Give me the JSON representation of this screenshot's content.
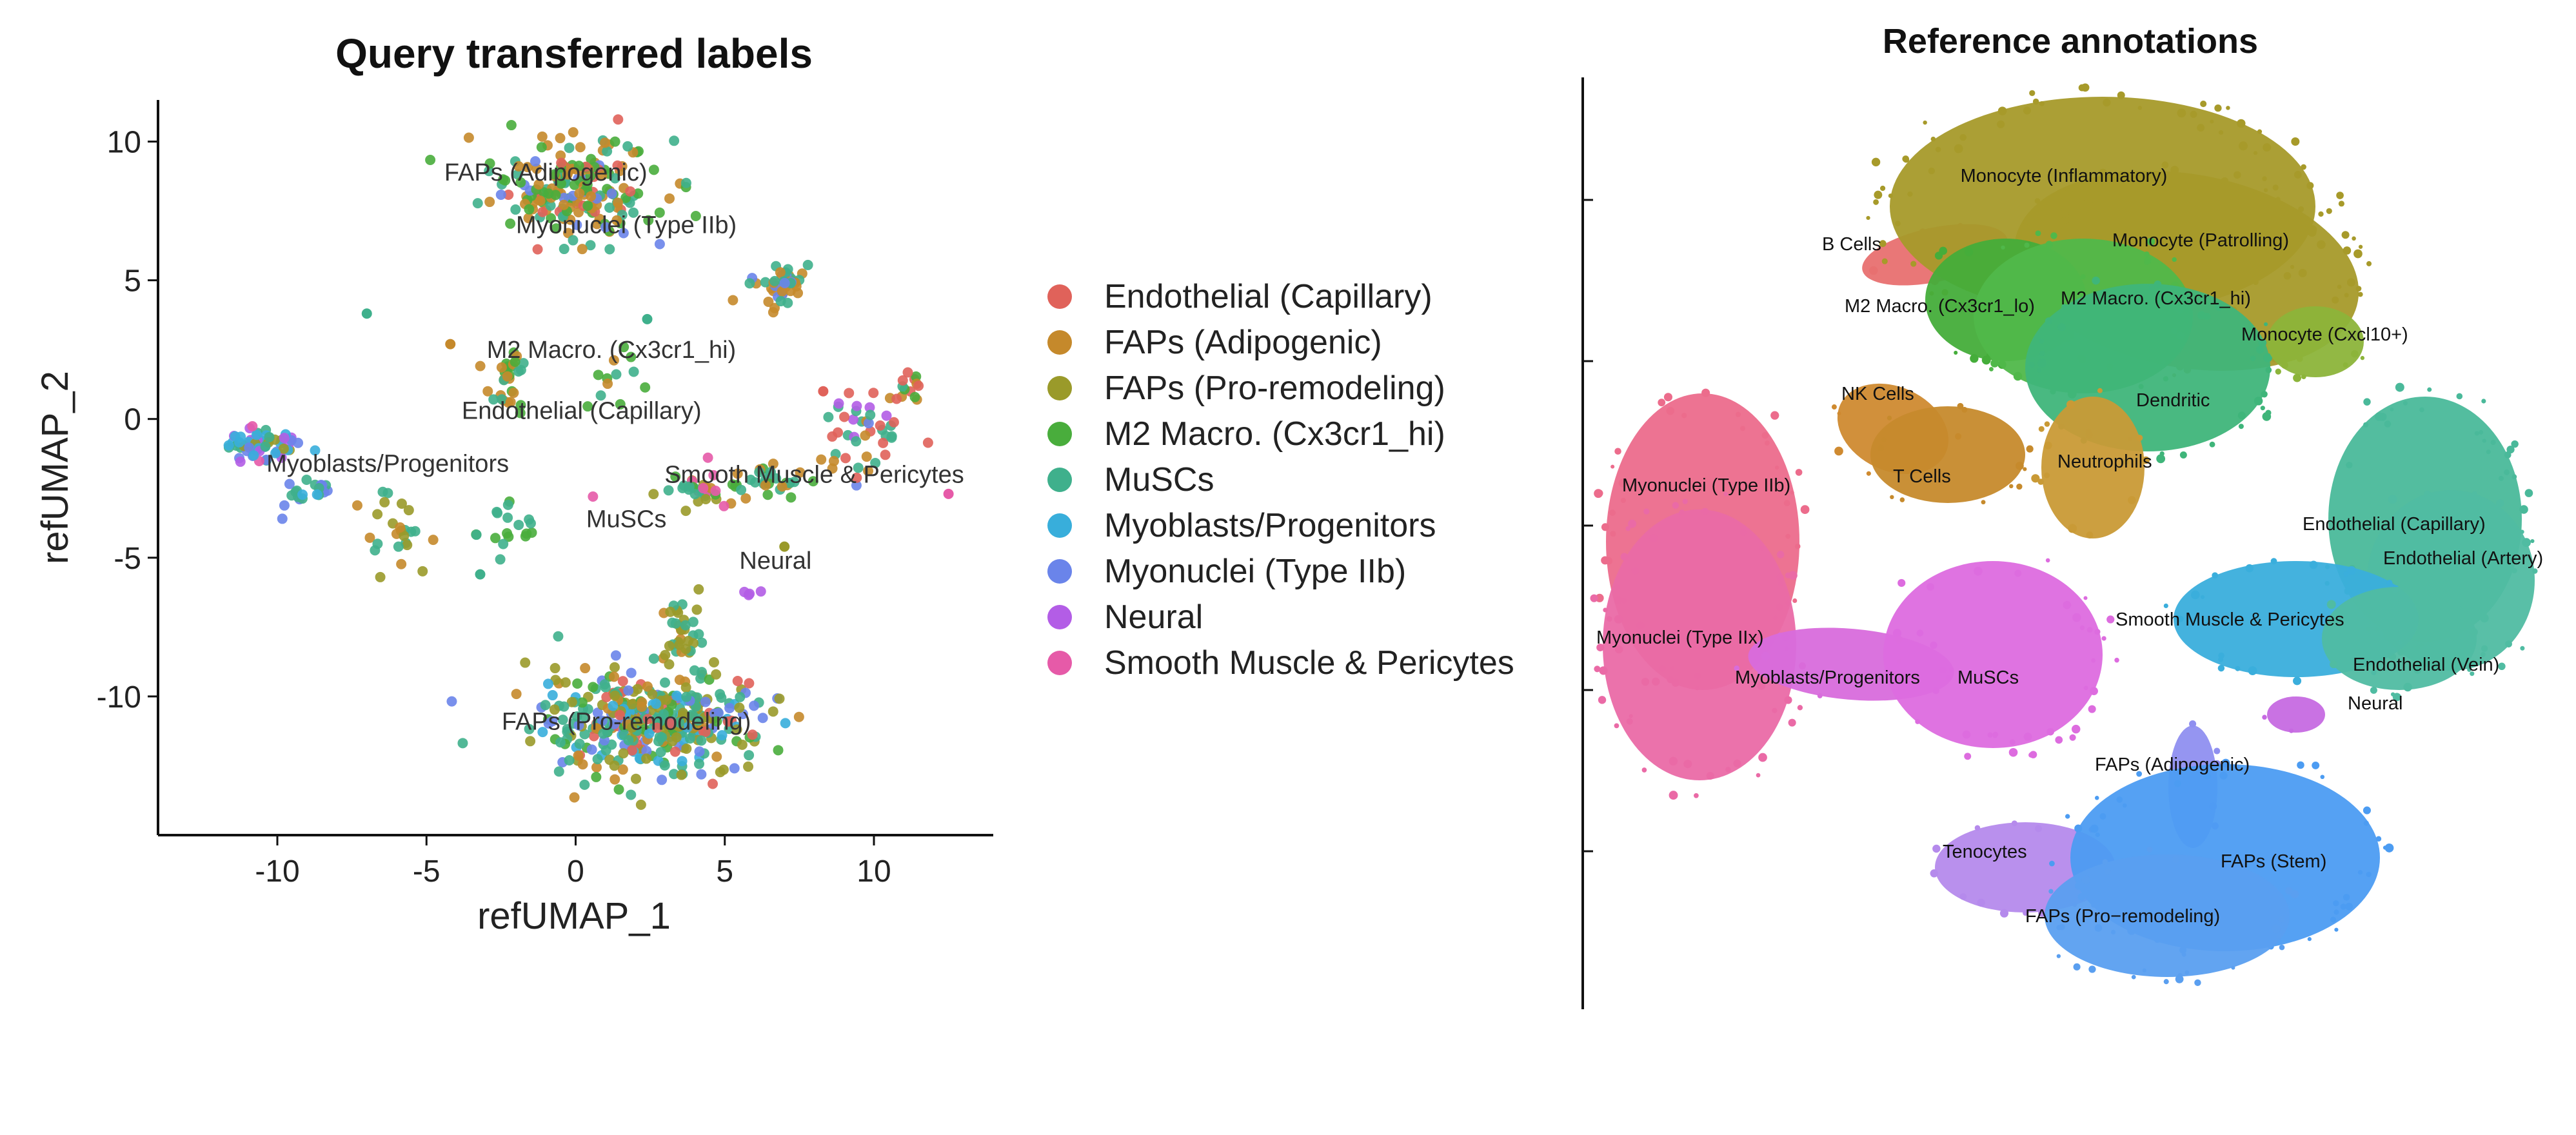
{
  "left_panel": {
    "title": "Query transferred labels",
    "xlabel": "refUMAP_1",
    "ylabel": "refUMAP_2",
    "legend": [
      {
        "label": "Endothelial (Capillary)",
        "color": "#e0625a"
      },
      {
        "label": "FAPs (Adipogenic)",
        "color": "#c5892b"
      },
      {
        "label": "FAPs (Pro-remodeling)",
        "color": "#9a9a2a"
      },
      {
        "label": "M2 Macro. (Cx3cr1_hi)",
        "color": "#49ad3c"
      },
      {
        "label": "MuSCs",
        "color": "#3fb08c"
      },
      {
        "label": "Myoblasts/Progenitors",
        "color": "#38aedb"
      },
      {
        "label": "Myonuclei (Type IIb)",
        "color": "#6a84ea"
      },
      {
        "label": "Neural",
        "color": "#b35de6"
      },
      {
        "label": "Smooth Muscle & Pericytes",
        "color": "#e65aa8"
      }
    ]
  },
  "right_panel": {
    "title": "Reference annotations"
  },
  "chart_data": [
    {
      "type": "scatter",
      "title": "Query transferred labels",
      "xlabel": "refUMAP_1",
      "ylabel": "refUMAP_2",
      "xlim": [
        -14,
        14
      ],
      "ylim": [
        -15,
        11.5
      ],
      "xticks": [
        -10,
        -5,
        0,
        5,
        10
      ],
      "yticks": [
        10,
        5,
        0,
        -5,
        -10
      ],
      "grid": false,
      "legend_position": "right",
      "clusters": [
        {
          "label": "FAPs (Adipogenic)",
          "x": 0,
          "y": 8,
          "label_x": -1,
          "label_y": 8.6
        },
        {
          "label": "Myonuclei (Type IIb)",
          "x": 1.5,
          "y": 7,
          "label_x": 1.7,
          "label_y": 6.7
        },
        {
          "label": "M2 Macro. (Cx3cr1_hi)",
          "x": -2,
          "y": 1.5,
          "label_x": 1.2,
          "label_y": 2.2
        },
        {
          "label": "Endothelial (Capillary)",
          "x": 9.5,
          "y": -0.5,
          "label_x": 0.2,
          "label_y": 0
        },
        {
          "label": "Myoblasts/Progenitors",
          "x": -10.5,
          "y": -1.5,
          "label_x": -6.3,
          "label_y": -1.9
        },
        {
          "label": "Smooth Muscle & Pericytes",
          "x": 6,
          "y": -2.2,
          "label_x": 8,
          "label_y": -2.3
        },
        {
          "label": "MuSCs",
          "x": 4,
          "y": -2.8,
          "label_x": 1.7,
          "label_y": -3.9
        },
        {
          "label": "Neural",
          "x": 6,
          "y": -6.2,
          "label_x": 6.7,
          "label_y": -5.4
        },
        {
          "label": "FAPs (Pro-remodeling)",
          "x": 2.5,
          "y": -11,
          "label_x": 1.7,
          "label_y": -11.2
        }
      ]
    },
    {
      "type": "scatter",
      "title": "Reference annotations",
      "legend_position": "none",
      "clusters": [
        {
          "label": "Monocyte (Inflammatory)",
          "color": "#a79a2a"
        },
        {
          "label": "B Cells",
          "color": "#e87070"
        },
        {
          "label": "Monocyte (Patrolling)",
          "color": "#a79a2a"
        },
        {
          "label": "M2 Macro. (Cx3cr1_lo)",
          "color": "#45ad3a"
        },
        {
          "label": "M2 Macro. (Cx3cr1_hi)",
          "color": "#50b84a"
        },
        {
          "label": "Monocyte (Cxcl10+)",
          "color": "#8cb43a"
        },
        {
          "label": "Dendritic",
          "color": "#3fb57a"
        },
        {
          "label": "NK Cells",
          "color": "#cf8a30"
        },
        {
          "label": "T Cells",
          "color": "#c68a2c"
        },
        {
          "label": "Neutrophils",
          "color": "#c99a36"
        },
        {
          "label": "Myonuclei (Type IIb)",
          "color": "#ec6c8c"
        },
        {
          "label": "Myonuclei (Type IIx)",
          "color": "#ea6aa6"
        },
        {
          "label": "Myoblasts/Progenitors",
          "color": "#d86cdc"
        },
        {
          "label": "MuSCs",
          "color": "#dd6cdf"
        },
        {
          "label": "Endothelial (Capillary)",
          "color": "#4ab99a"
        },
        {
          "label": "Endothelial (Artery)",
          "color": "#50bca2"
        },
        {
          "label": "Smooth Muscle & Pericytes",
          "color": "#3aaedc"
        },
        {
          "label": "Endothelial (Vein)",
          "color": "#50bca2"
        },
        {
          "label": "Neural",
          "color": "#c66ae2"
        },
        {
          "label": "FAPs (Adipogenic)",
          "color": "#8f8ff0"
        },
        {
          "label": "Tenocytes",
          "color": "#b58aec"
        },
        {
          "label": "FAPs (Stem)",
          "color": "#4c9cf2"
        },
        {
          "label": "FAPs (Pro−remodeling)",
          "color": "#5a9ff0"
        }
      ]
    }
  ]
}
